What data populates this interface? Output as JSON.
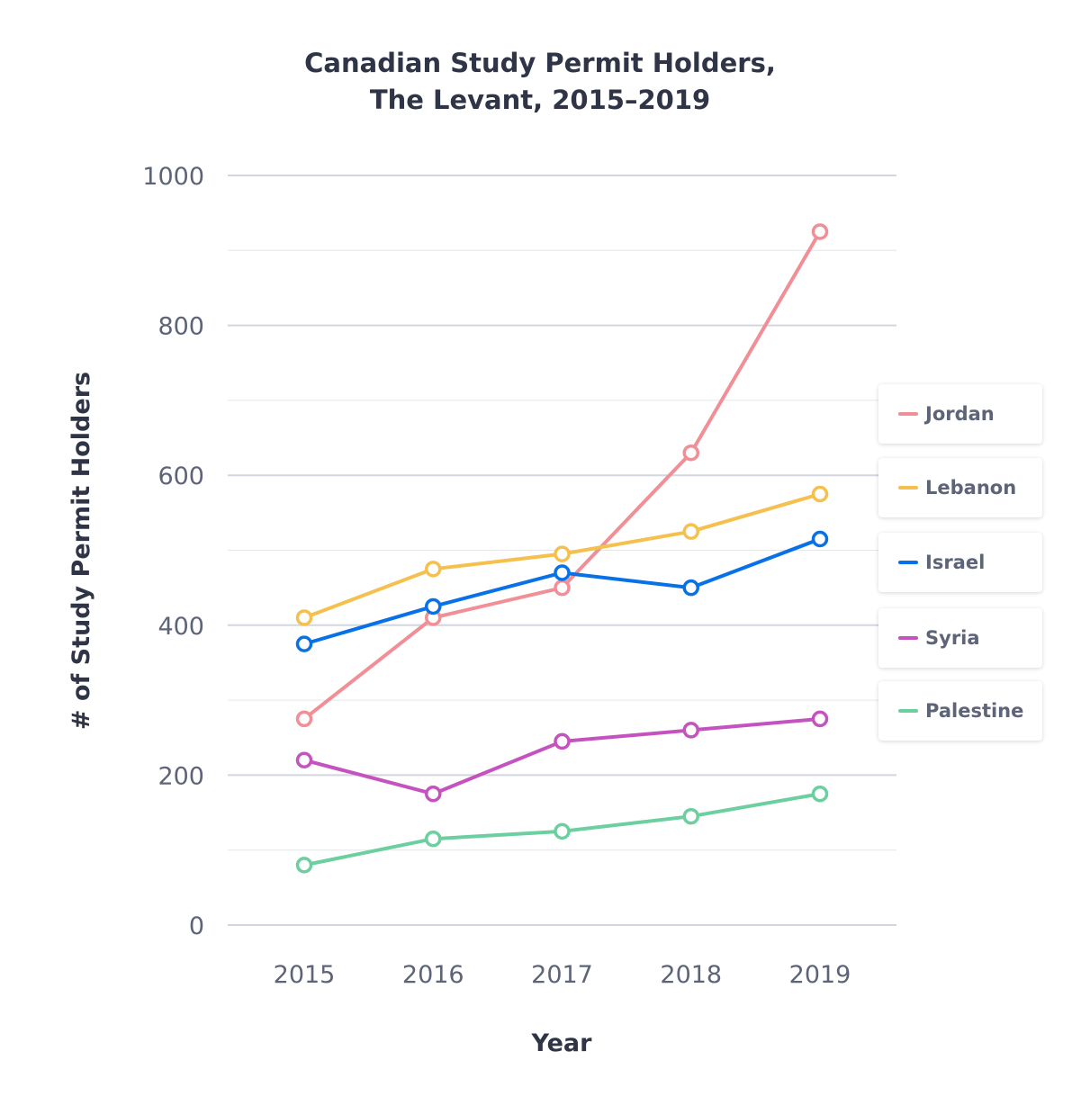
{
  "chart_data": {
    "type": "line",
    "title": [
      "Canadian Study Permit Holders,",
      "The Levant, 2015–2019"
    ],
    "xlabel": "Year",
    "ylabel": "# of Study Permit Holders",
    "x": [
      "2015",
      "2016",
      "2017",
      "2018",
      "2019"
    ],
    "ylim": [
      0,
      1000
    ],
    "yticks": [
      "0",
      "200",
      "400",
      "600",
      "800",
      "1000"
    ],
    "grid": true,
    "legend_position": "right",
    "series": [
      {
        "name": "Jordan",
        "color": "#f28e96",
        "values": [
          275,
          410,
          450,
          630,
          925
        ]
      },
      {
        "name": "Lebanon",
        "color": "#f5c04e",
        "values": [
          410,
          475,
          495,
          525,
          575
        ]
      },
      {
        "name": "Israel",
        "color": "#0971e8",
        "values": [
          375,
          425,
          470,
          450,
          515
        ]
      },
      {
        "name": "Syria",
        "color": "#c553bf",
        "values": [
          220,
          175,
          245,
          260,
          275
        ]
      },
      {
        "name": "Palestine",
        "color": "#6ccf9f",
        "values": [
          80,
          115,
          125,
          145,
          175
        ]
      }
    ]
  }
}
